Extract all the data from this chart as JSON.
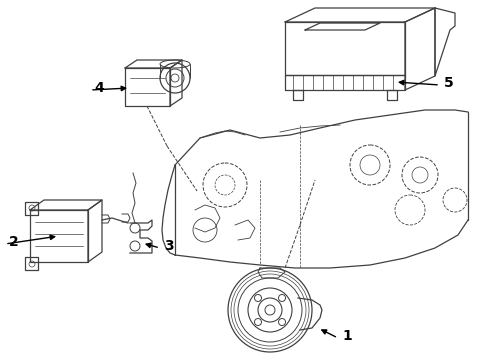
{
  "bg_color": "#ffffff",
  "line_color": "#404040",
  "label_color": "#000000",
  "figsize": [
    4.9,
    3.6
  ],
  "dpi": 100,
  "label_fontsize": 10,
  "label_fontweight": "bold"
}
